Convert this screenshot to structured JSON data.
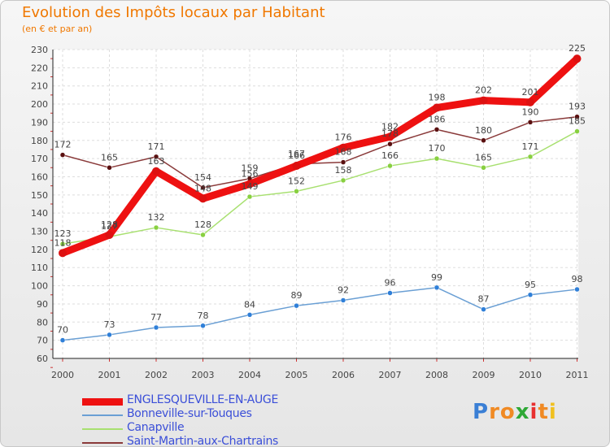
{
  "title": "Evolution des Impôts locaux par Habitant",
  "subtitle": "(en € et par an)",
  "logo": {
    "letters": [
      "P",
      "r",
      "o",
      "x",
      "i",
      "t",
      "i"
    ],
    "colors": [
      "#3a7fd5",
      "#f08a24",
      "#f08a24",
      "#2ea836",
      "#e83030",
      "#f08a24",
      "#f0c020"
    ]
  },
  "chart_data": {
    "type": "line",
    "title": "Evolution des Impôts locaux par Habitant",
    "subtitle": "(en € et par an)",
    "categories": [
      "2000",
      "2001",
      "2002",
      "2003",
      "2004",
      "2005",
      "2006",
      "2007",
      "2008",
      "2009",
      "2010",
      "2011"
    ],
    "ylim": [
      60,
      230
    ],
    "yticks": [
      60,
      70,
      80,
      90,
      100,
      110,
      120,
      130,
      140,
      150,
      160,
      170,
      180,
      190,
      200,
      210,
      220,
      230
    ],
    "grid": true,
    "legend_position": "bottom-left",
    "series": [
      {
        "name": "ENGLESQUEVILLE-EN-AUGE",
        "color": "#ee1111",
        "marker": "#dd1111",
        "width": 9,
        "r": 5,
        "values": [
          118,
          128,
          163,
          148,
          156,
          166,
          176,
          182,
          198,
          202,
          201,
          225
        ],
        "labels": [
          "118",
          "128",
          "163",
          "148",
          "156",
          "166",
          "176",
          "182",
          "198",
          "202",
          "201",
          "225"
        ]
      },
      {
        "name": "Bonneville-sur-Touques",
        "color": "#6a9fd4",
        "marker": "#2f7fd8",
        "width": 1.5,
        "r": 3,
        "values": [
          70,
          73,
          77,
          78,
          84,
          89,
          92,
          96,
          99,
          87,
          95,
          98
        ],
        "labels": [
          "70",
          "73",
          "77",
          "78",
          "84",
          "89",
          "92",
          "96",
          "99",
          "87",
          "95",
          "98"
        ]
      },
      {
        "name": "Canapville",
        "color": "#a8e070",
        "marker": "#88d040",
        "width": 1.5,
        "r": 3,
        "values": [
          123,
          127,
          132,
          128,
          149,
          152,
          158,
          166,
          170,
          165,
          171,
          185
        ],
        "labels": [
          "123",
          "127",
          "132",
          "128",
          "149",
          "152",
          "158",
          "166",
          "170",
          "165",
          "171",
          "185"
        ]
      },
      {
        "name": "Saint-Martin-aux-Chartrains",
        "color": "#8a3a3a",
        "marker": "#5a1010",
        "width": 1.5,
        "r": 3,
        "values": [
          172,
          165,
          171,
          154,
          159,
          167,
          168,
          178,
          186,
          180,
          190,
          193
        ],
        "labels": [
          "172",
          "165",
          "171",
          "154",
          "159",
          "167",
          "168",
          "178",
          "186",
          "180",
          "190",
          "193"
        ]
      }
    ]
  }
}
